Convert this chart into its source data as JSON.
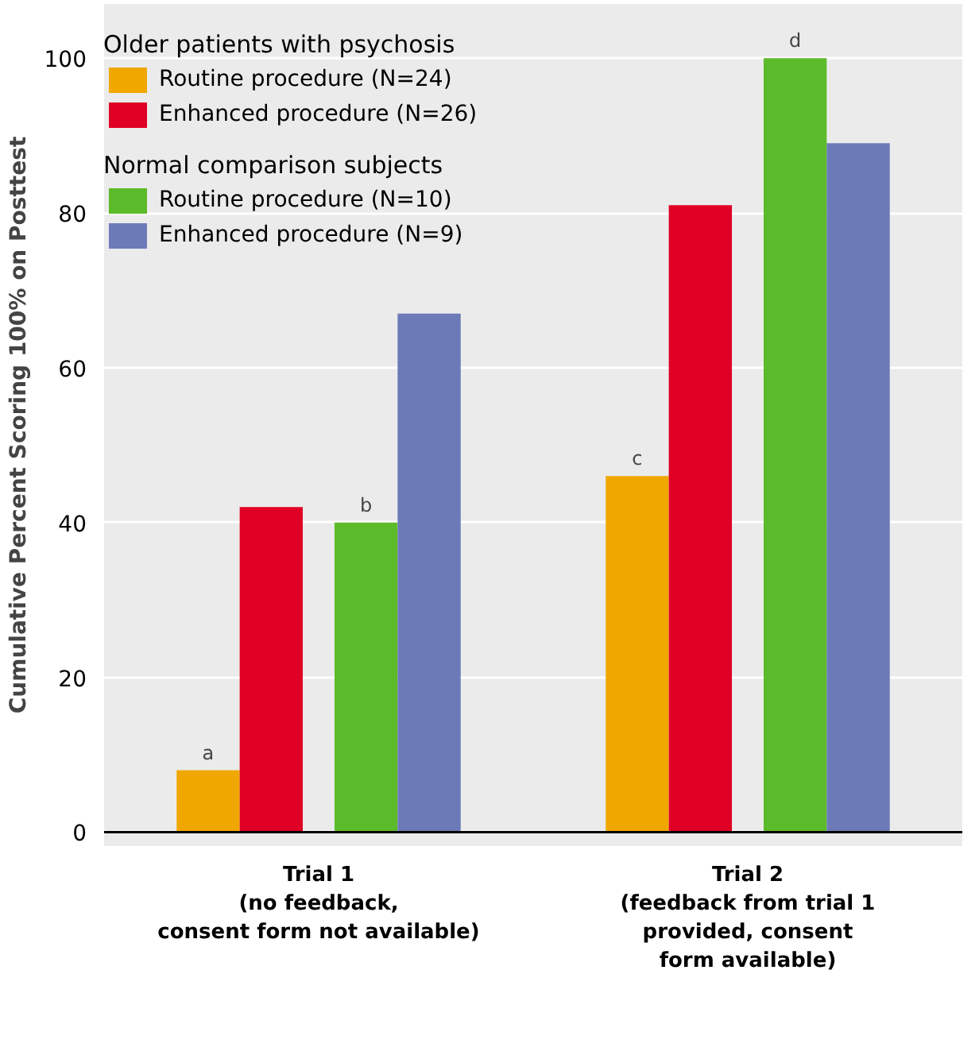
{
  "chart_data": {
    "type": "bar",
    "ylabel": "Cumulative Percent Scoring 100% on Posttest",
    "categories": [
      "Trial 1\n(no feedback,\nconsent form not available)",
      "Trial 2\n(feedback from trial 1\nprovided, consent\nform available)"
    ],
    "series": [
      {
        "name": "Routine procedure (N=24)",
        "color": "#f0a800",
        "values": [
          8,
          46
        ],
        "value_labels": [
          "a",
          "c"
        ]
      },
      {
        "name": "Enhanced procedure (N=26)",
        "color": "#e00025",
        "values": [
          42,
          81
        ]
      },
      {
        "name": "Routine procedure (N=10)",
        "color": "#5cbb2a",
        "values": [
          40,
          100
        ],
        "value_labels": [
          "b",
          "d"
        ]
      },
      {
        "name": "Enhanced procedure (N=9)",
        "color": "#6d7ab8",
        "values": [
          67,
          89
        ]
      }
    ],
    "ylim": [
      -1.8,
      107
    ],
    "yticks": [
      0,
      20,
      40,
      60,
      80,
      100
    ],
    "ref_lines": [
      {
        "axis": "y",
        "value": 0,
        "color": "#000000"
      }
    ],
    "annotations": [
      "Older patients with psychosis",
      "Normal comparison subjects"
    ],
    "grid": "y",
    "legend": "top left"
  }
}
